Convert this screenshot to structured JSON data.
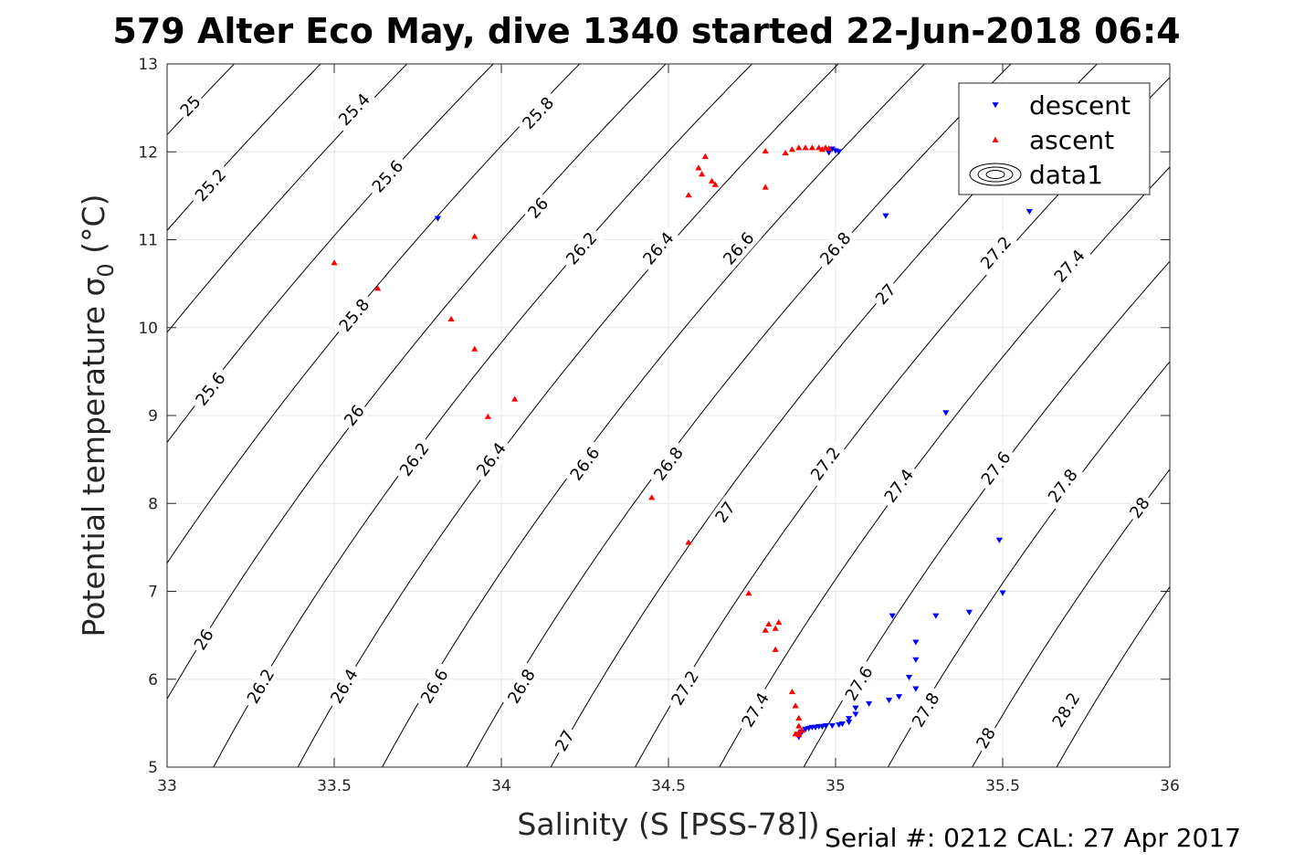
{
  "chart_data": {
    "type": "scatter",
    "title": "579 Alter Eco May, dive 1340 started 22-Jun-2018 06:4",
    "xlabel": "Salinity (S [PSS-78])",
    "ylabel": "Potential temperature σ₀ (°C)",
    "ylabel_main": "Potential temperature σ",
    "ylabel_sub": "0",
    "ylabel_unit": " (°C)",
    "footer": "Serial #: 0212  CAL: 27 Apr 2017",
    "xlim": [
      33,
      36
    ],
    "ylim": [
      5,
      13
    ],
    "xticks": [
      "33",
      "33.5",
      "34",
      "34.5",
      "35",
      "35.5",
      "36"
    ],
    "yticks": [
      "5",
      "6",
      "7",
      "8",
      "9",
      "10",
      "11",
      "12",
      "13"
    ],
    "grid": true,
    "legend_position": "top-right",
    "legend": [
      "descent",
      "ascent",
      "data1"
    ],
    "contours": {
      "levels": [
        25,
        25.2,
        25.4,
        25.6,
        25.8,
        26,
        26.2,
        26.4,
        26.6,
        26.8,
        27,
        27.2,
        27.4,
        27.6,
        27.8,
        28,
        28.2
      ],
      "labels": [
        {
          "text": "25",
          "s": 33.07,
          "t": 12.52
        },
        {
          "text": "25.4",
          "s": 33.56,
          "t": 12.48
        },
        {
          "text": "25.8",
          "s": 34.11,
          "t": 12.44
        },
        {
          "text": "25.2",
          "s": 33.13,
          "t": 11.62
        },
        {
          "text": "25.6",
          "s": 33.66,
          "t": 11.72
        },
        {
          "text": "26",
          "s": 34.11,
          "t": 11.36
        },
        {
          "text": "26.2",
          "s": 34.24,
          "t": 10.9
        },
        {
          "text": "26.4",
          "s": 34.47,
          "t": 10.9
        },
        {
          "text": "26.6",
          "s": 34.71,
          "t": 10.9
        },
        {
          "text": "26.8",
          "s": 35.0,
          "t": 10.9
        },
        {
          "text": "27.2",
          "s": 35.48,
          "t": 10.85
        },
        {
          "text": "27.4",
          "s": 35.7,
          "t": 10.7
        },
        {
          "text": "25.8",
          "s": 33.56,
          "t": 10.14
        },
        {
          "text": "27",
          "s": 35.15,
          "t": 10.38
        },
        {
          "text": "25.6",
          "s": 33.13,
          "t": 9.3
        },
        {
          "text": "26",
          "s": 33.56,
          "t": 9.0
        },
        {
          "text": "26.2",
          "s": 33.74,
          "t": 8.5
        },
        {
          "text": "26.4",
          "s": 33.97,
          "t": 8.5
        },
        {
          "text": "26.6",
          "s": 34.25,
          "t": 8.45
        },
        {
          "text": "26.8",
          "s": 34.5,
          "t": 8.45
        },
        {
          "text": "27",
          "s": 34.67,
          "t": 7.9
        },
        {
          "text": "27.2",
          "s": 34.97,
          "t": 8.45
        },
        {
          "text": "27.4",
          "s": 35.19,
          "t": 8.2
        },
        {
          "text": "27.6",
          "s": 35.48,
          "t": 8.4
        },
        {
          "text": "27.8",
          "s": 35.68,
          "t": 8.2
        },
        {
          "text": "28",
          "s": 35.91,
          "t": 7.95
        },
        {
          "text": "26",
          "s": 33.11,
          "t": 6.45
        },
        {
          "text": "26.2",
          "s": 33.28,
          "t": 5.92
        },
        {
          "text": "26.4",
          "s": 33.53,
          "t": 5.92
        },
        {
          "text": "26.6",
          "s": 33.8,
          "t": 5.92
        },
        {
          "text": "26.8",
          "s": 34.06,
          "t": 5.92
        },
        {
          "text": "27",
          "s": 34.19,
          "t": 5.3
        },
        {
          "text": "27.2",
          "s": 34.55,
          "t": 5.9
        },
        {
          "text": "27.4",
          "s": 34.76,
          "t": 5.65
        },
        {
          "text": "27.6",
          "s": 35.07,
          "t": 5.95
        },
        {
          "text": "27.8",
          "s": 35.27,
          "t": 5.65
        },
        {
          "text": "28",
          "s": 35.45,
          "t": 5.33
        },
        {
          "text": "28.2",
          "s": 35.69,
          "t": 5.65
        }
      ]
    },
    "series": [
      {
        "name": "descent",
        "color": "#0000ff",
        "marker": "triangle-down",
        "points": [
          [
            33.81,
            11.24
          ],
          [
            34.98,
            11.99
          ],
          [
            34.99,
            12.03
          ],
          [
            35.0,
            12.01
          ],
          [
            35.01,
            12.0
          ],
          [
            35.15,
            11.27
          ],
          [
            35.58,
            11.32
          ],
          [
            35.33,
            9.03
          ],
          [
            35.49,
            7.58
          ],
          [
            35.5,
            6.98
          ],
          [
            35.17,
            6.72
          ],
          [
            35.3,
            6.72
          ],
          [
            35.4,
            6.76
          ],
          [
            35.24,
            6.42
          ],
          [
            35.24,
            6.22
          ],
          [
            35.22,
            6.02
          ],
          [
            35.24,
            5.89
          ],
          [
            35.19,
            5.8
          ],
          [
            35.16,
            5.76
          ],
          [
            35.1,
            5.72
          ],
          [
            35.06,
            5.67
          ],
          [
            35.06,
            5.6
          ],
          [
            35.04,
            5.55
          ],
          [
            35.04,
            5.51
          ],
          [
            35.02,
            5.49
          ],
          [
            35.01,
            5.48
          ],
          [
            34.99,
            5.47
          ],
          [
            34.97,
            5.47
          ],
          [
            34.96,
            5.46
          ],
          [
            34.95,
            5.46
          ],
          [
            34.94,
            5.45
          ],
          [
            34.93,
            5.45
          ],
          [
            34.92,
            5.44
          ],
          [
            34.91,
            5.43
          ],
          [
            34.9,
            5.4
          ],
          [
            34.89,
            5.37
          ],
          [
            34.89,
            5.34
          ]
        ]
      },
      {
        "name": "ascent",
        "color": "#ff0000",
        "marker": "triangle-up",
        "points": [
          [
            33.5,
            10.74
          ],
          [
            33.63,
            10.45
          ],
          [
            33.92,
            11.04
          ],
          [
            33.85,
            10.1
          ],
          [
            33.92,
            9.76
          ],
          [
            33.96,
            8.99
          ],
          [
            34.04,
            9.19
          ],
          [
            34.45,
            8.07
          ],
          [
            34.56,
            7.56
          ],
          [
            34.56,
            11.51
          ],
          [
            34.59,
            11.82
          ],
          [
            34.61,
            11.95
          ],
          [
            34.6,
            11.75
          ],
          [
            34.63,
            11.67
          ],
          [
            34.64,
            11.63
          ],
          [
            34.79,
            12.01
          ],
          [
            34.79,
            11.6
          ],
          [
            34.85,
            11.99
          ],
          [
            34.87,
            12.03
          ],
          [
            34.89,
            12.05
          ],
          [
            34.91,
            12.05
          ],
          [
            34.93,
            12.05
          ],
          [
            34.95,
            12.05
          ],
          [
            34.96,
            12.03
          ],
          [
            34.97,
            12.05
          ],
          [
            34.98,
            12.04
          ],
          [
            34.74,
            6.98
          ],
          [
            34.79,
            6.56
          ],
          [
            34.8,
            6.63
          ],
          [
            34.82,
            6.58
          ],
          [
            34.83,
            6.65
          ],
          [
            34.82,
            6.34
          ],
          [
            34.87,
            5.86
          ],
          [
            34.88,
            5.7
          ],
          [
            34.89,
            5.56
          ],
          [
            34.89,
            5.47
          ],
          [
            34.89,
            5.4
          ],
          [
            34.89,
            5.37
          ],
          [
            34.9,
            5.42
          ],
          [
            34.88,
            5.38
          ]
        ]
      }
    ]
  }
}
